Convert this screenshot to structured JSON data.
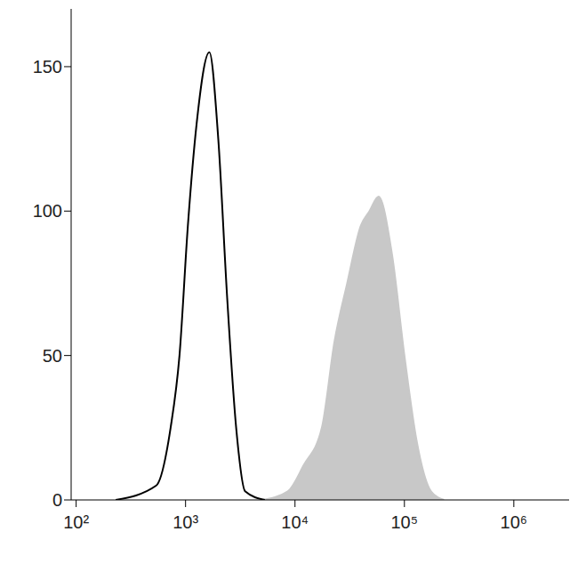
{
  "chart_data": {
    "type": "line",
    "log": "x",
    "xlim": [
      90,
      3200000
    ],
    "ylim": [
      0,
      170
    ],
    "xticks": [
      {
        "value": 100,
        "label": "10²"
      },
      {
        "value": 1000,
        "label": "10³"
      },
      {
        "value": 10000,
        "label": "10⁴"
      },
      {
        "value": 100000,
        "label": "10⁵"
      },
      {
        "value": 1000000,
        "label": "10⁶"
      }
    ],
    "yticks": [
      0,
      50,
      100,
      150
    ],
    "series": [
      {
        "type": "area",
        "color": "#c8c8c8",
        "x": [
          5000,
          8600,
          12000,
          17600,
          23000,
          30000,
          40000,
          48000,
          58000,
          77000,
          100000,
          130000,
          175000,
          230000
        ],
        "values": [
          0,
          3,
          12,
          25,
          55,
          75,
          95,
          100,
          105,
          85,
          50,
          20,
          3,
          0
        ]
      },
      {
        "type": "line",
        "color": "#000000",
        "x": [
          230,
          540,
          730,
          880,
          1050,
          1260,
          1650,
          1990,
          2400,
          2900,
          3500,
          5300
        ],
        "values": [
          0,
          5,
          25,
          50,
          95,
          130,
          155,
          125,
          70,
          25,
          3,
          0
        ]
      }
    ]
  }
}
